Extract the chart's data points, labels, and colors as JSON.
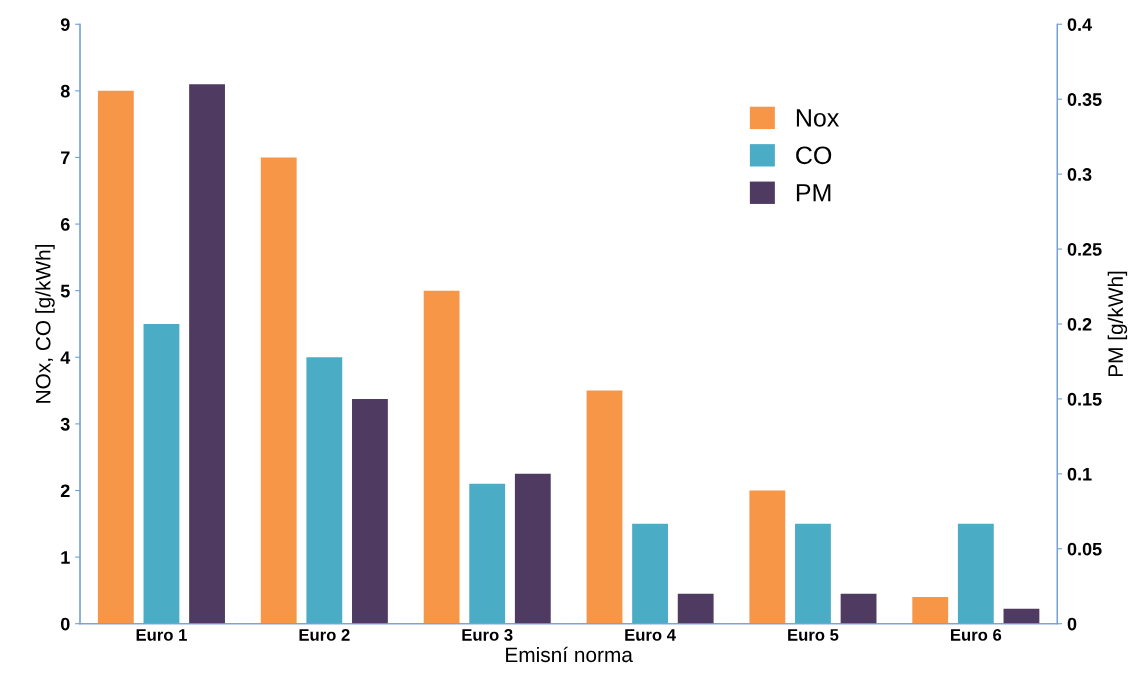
{
  "chart_data": {
    "type": "bar",
    "xlabel": "Emisní norma",
    "ylabel": "NOx, CO [g/kWh]",
    "y2label": "PM [g/kWh]",
    "categories": [
      "Euro 1",
      "Euro 2",
      "Euro 3",
      "Euro 4",
      "Euro 5",
      "Euro 6"
    ],
    "series": [
      {
        "name": "Nox",
        "color": "#f79646",
        "values": [
          8,
          7,
          5,
          3.5,
          2,
          0.4
        ]
      },
      {
        "name": "CO",
        "color": "#4bacc6",
        "values": [
          4.5,
          4,
          2.1,
          1.5,
          1.5,
          1.5
        ]
      },
      {
        "name": "PM",
        "color": "#4f3b62",
        "axis": "y2",
        "values": [
          0.36,
          0.15,
          0.1,
          0.02,
          0.02,
          0.01
        ]
      }
    ],
    "ylim": [
      0,
      9
    ],
    "yticks": [
      0,
      1,
      2,
      3,
      4,
      5,
      6,
      7,
      8,
      9
    ],
    "y2lim": [
      0,
      0.4
    ],
    "y2ticks": [
      0,
      0.05,
      0.1,
      0.15,
      0.2,
      0.25,
      0.3,
      0.35,
      0.4
    ],
    "grid": false,
    "legend": "top right"
  }
}
